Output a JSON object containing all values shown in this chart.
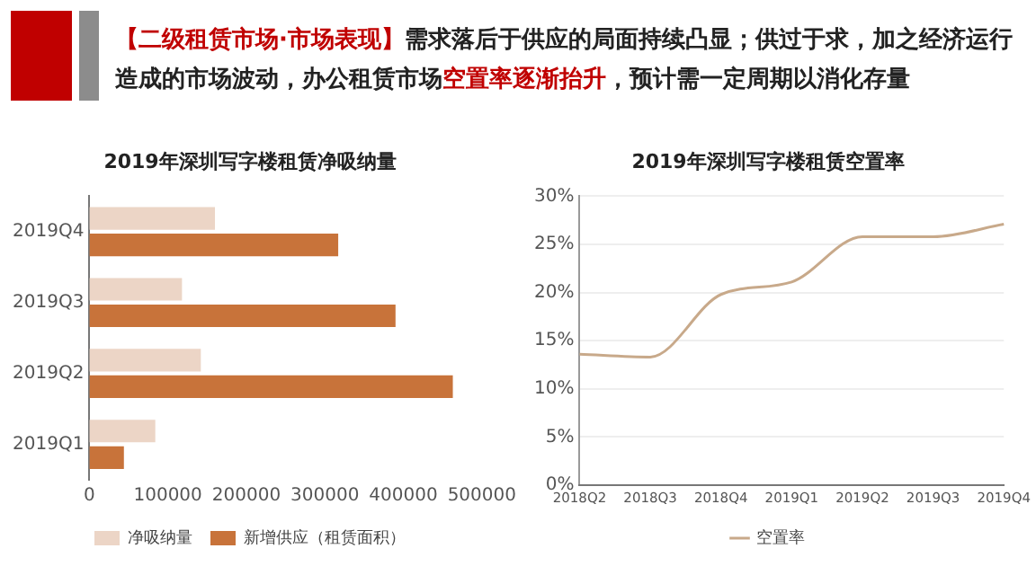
{
  "chart_data": [
    {
      "type": "bar",
      "orientation": "horizontal",
      "title": "2019年深圳写字楼租赁净吸纳量",
      "annotations": [
        "【二级租赁市场·市场表现】",
        "需求落后于供应的局面持续凸显；供过于求，加之经济运行造成的市场波动，办公租赁市场",
        "空置率逐渐抬升",
        "，预计需一定周期以消化存量"
      ],
      "categories": [
        "2019Q4",
        "2019Q3",
        "2019Q2",
        "2019Q1"
      ],
      "series": [
        {
          "name": "净吸纳量",
          "color": "#ecd5c6",
          "values": [
            160000,
            118000,
            142000,
            84000
          ]
        },
        {
          "name": "新增供应（租赁面积）",
          "color": "#c8733a",
          "values": [
            317000,
            390000,
            463000,
            44000
          ]
        }
      ],
      "xlim": [
        0,
        500000
      ],
      "xticks": [
        0,
        100000,
        200000,
        300000,
        400000,
        500000
      ],
      "grid": false,
      "legend": "bottom"
    },
    {
      "type": "line",
      "title": "2019年深圳写字楼租赁空置率",
      "categories": [
        "2018Q2",
        "2018Q3",
        "2018Q4",
        "2019Q1",
        "2019Q2",
        "2019Q3",
        "2019Q4"
      ],
      "series": [
        {
          "name": "空置率",
          "color": "#c8a98a",
          "values": [
            13.6,
            13.3,
            19.8,
            21.1,
            25.8,
            25.8,
            27.1
          ]
        }
      ],
      "ylim": [
        0,
        30
      ],
      "yticks": [
        {
          "value": 0,
          "label": "0%"
        },
        {
          "value": 5,
          "label": "5%"
        },
        {
          "value": 10,
          "label": "10%"
        },
        {
          "value": 15,
          "label": "15%"
        },
        {
          "value": 20,
          "label": "20%"
        },
        {
          "value": 25,
          "label": "25%"
        },
        {
          "value": 30,
          "label": "30%"
        }
      ],
      "grid": "y",
      "legend": "bottom",
      "marker": "none",
      "line_style": "solid"
    }
  ]
}
